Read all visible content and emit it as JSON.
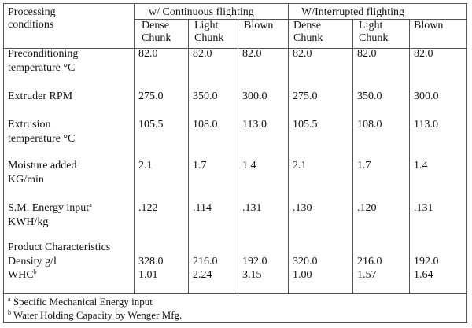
{
  "header": {
    "processing_label": "Processing",
    "conditions_label": "conditions",
    "group1": "w/ Continuous flighting",
    "group2": "W/Interrupted flighting",
    "columns": [
      [
        "Dense",
        "Chunk"
      ],
      [
        "Light",
        "Chunk"
      ],
      [
        "Blown",
        ""
      ],
      [
        "Dense",
        "Chunk"
      ],
      [
        "Light",
        "Chunk"
      ],
      [
        "Blown",
        ""
      ]
    ]
  },
  "rows": [
    {
      "label1": "Preconditioning",
      "label2": "temperature °C",
      "values": [
        "82.0",
        "82.0",
        "82.0",
        "82.0",
        "82.0",
        "82.0"
      ]
    },
    {
      "label1": "Extruder RPM",
      "label2": "",
      "values": [
        "275.0",
        "350.0",
        "300.0",
        "275.0",
        "350.0",
        "300.0"
      ]
    },
    {
      "label1": "Extrusion",
      "label2": "temperature °C",
      "values": [
        "105.5",
        "108.0",
        "113.0",
        "105.5",
        "108.0",
        "113.0"
      ]
    },
    {
      "label1": "Moisture added",
      "label2": "KG/min",
      "values": [
        "2.1",
        "1.7",
        "1.4",
        "2.1",
        "1.7",
        "1.4"
      ]
    },
    {
      "label1": "S.M. Energy input",
      "label1_sup": "a",
      "label2": "KWH/kg",
      "values": [
        ".122",
        ".114",
        ".131",
        ".130",
        ".120",
        ".131"
      ]
    },
    {
      "label1": "Product Characteristics",
      "label2": "Density g/l",
      "label3": "WHC",
      "label3_sup": "b",
      "values": [
        "328.0",
        "216.0",
        "192.0",
        "320.0",
        "216.0",
        "192.0"
      ],
      "values2": [
        "1.01",
        "2.24",
        "3.15",
        "1.00",
        "1.57",
        "1.64"
      ]
    }
  ],
  "footnotes": [
    {
      "mark": "a",
      "text": "Specific Mechanical Energy input"
    },
    {
      "mark": "b",
      "text": "Water Holding Capacity by Wenger Mfg."
    }
  ]
}
